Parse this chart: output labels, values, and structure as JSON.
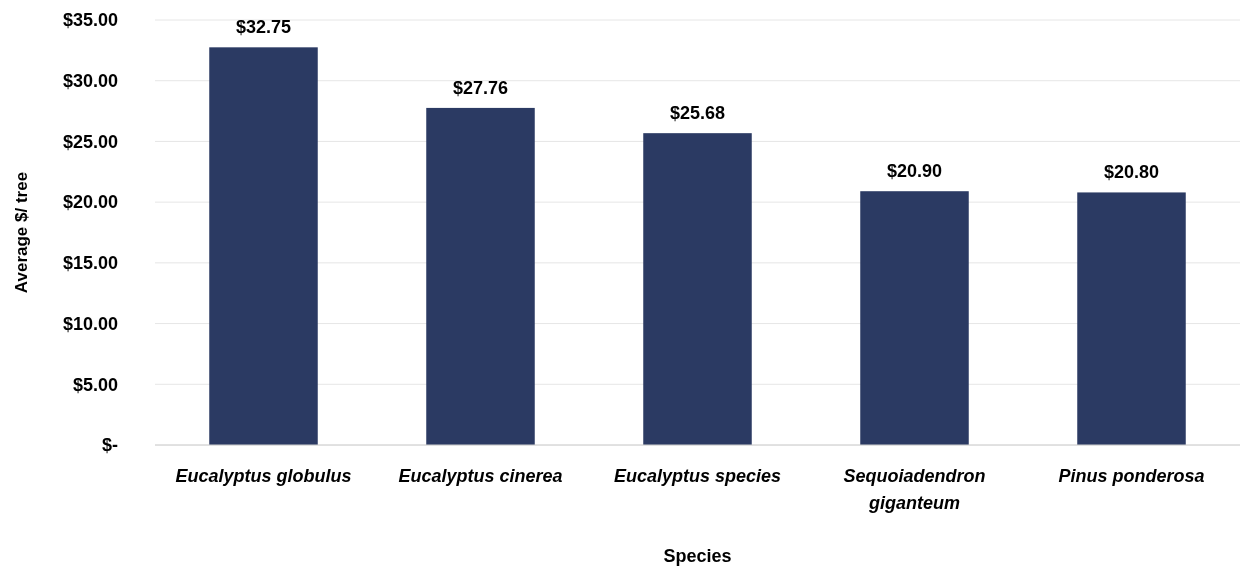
{
  "chart_data": {
    "type": "bar",
    "xlabel": "Species",
    "ylabel": "Average $/ tree",
    "categories": [
      "Eucalyptus globulus",
      "Eucalyptus cinerea",
      "Eucalyptus species",
      "Sequoiadendron giganteum",
      "Pinus ponderosa"
    ],
    "values": [
      32.75,
      27.76,
      25.68,
      20.9,
      20.8
    ],
    "value_labels": [
      "$32.75",
      "$27.76",
      "$25.68",
      "$20.90",
      "$20.80"
    ],
    "color": "#2b3a63",
    "ylim": [
      0,
      35
    ],
    "yticks": [
      {
        "value": 0,
        "label": "$-"
      },
      {
        "value": 5,
        "label": "$5.00"
      },
      {
        "value": 10,
        "label": "$10.00"
      },
      {
        "value": 15,
        "label": "$15.00"
      },
      {
        "value": 20,
        "label": "$20.00"
      },
      {
        "value": 25,
        "label": "$25.00"
      },
      {
        "value": 30,
        "label": "$30.00"
      },
      {
        "value": 35,
        "label": "$35.00"
      }
    ],
    "grid": "y"
  }
}
